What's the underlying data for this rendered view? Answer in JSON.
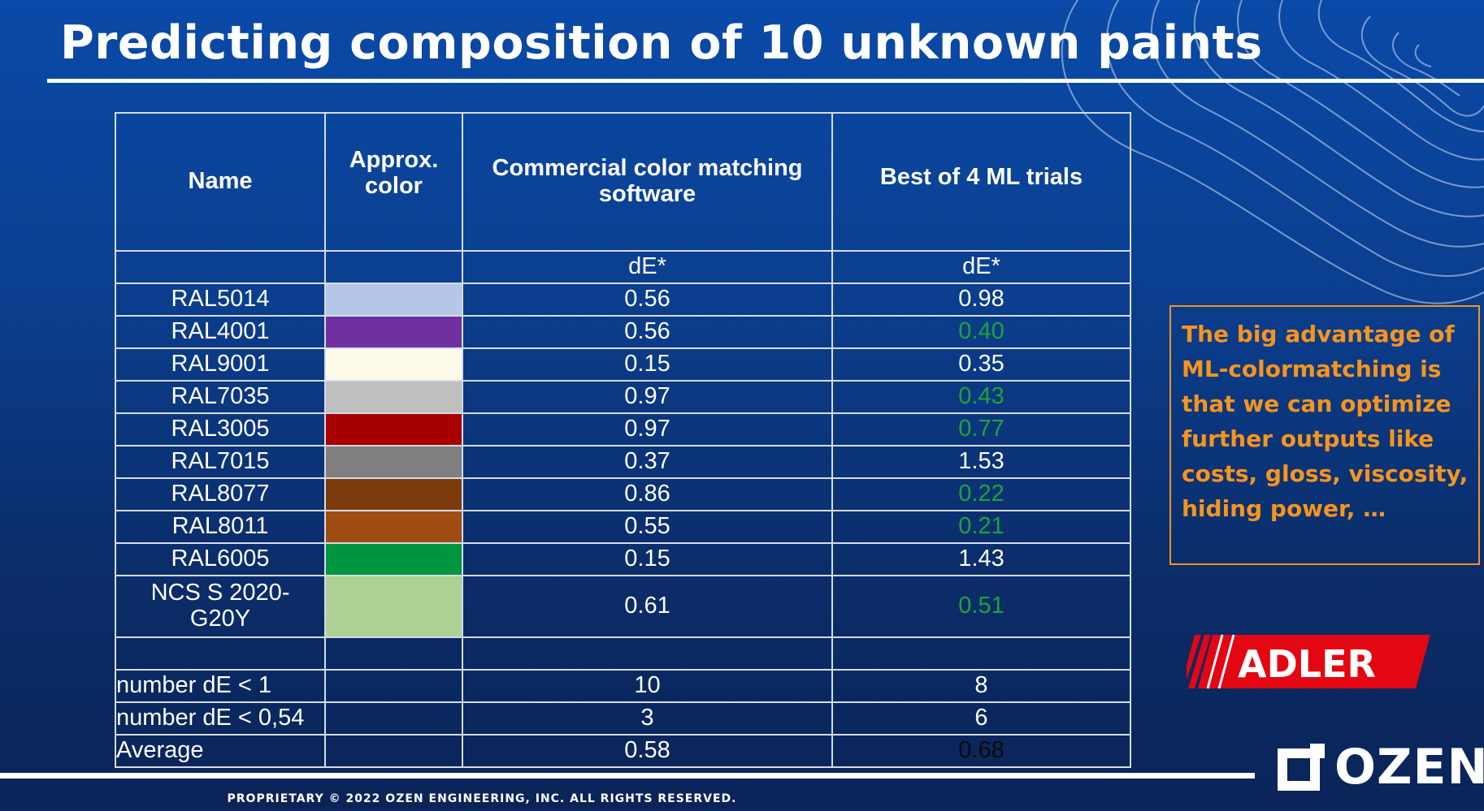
{
  "title": "Predicting composition of 10 unknown paints",
  "table": {
    "headers": {
      "name": "Name",
      "color": "Approx. color",
      "commercial": "Commercial color matching software",
      "ml": "Best of 4 ML trials"
    },
    "units": {
      "commercial": "dE*",
      "ml": "dE*"
    },
    "rows": [
      {
        "name": "RAL5014",
        "swatch": "#b4c7e8",
        "commercial": "0.56",
        "ml": "0.98",
        "ml_color": "#ffffff"
      },
      {
        "name": "RAL4001",
        "swatch": "#7030a0",
        "commercial": "0.56",
        "ml": "0.40",
        "ml_color": "#1fa33a"
      },
      {
        "name": "RAL9001",
        "swatch": "#fefce8",
        "commercial": "0.15",
        "ml": "0.35",
        "ml_color": "#ffffff"
      },
      {
        "name": "RAL7035",
        "swatch": "#bfbfbf",
        "commercial": "0.97",
        "ml": "0.43",
        "ml_color": "#1fa33a"
      },
      {
        "name": "RAL3005",
        "swatch": "#a80000",
        "commercial": "0.97",
        "ml": "0.77",
        "ml_color": "#1fa33a"
      },
      {
        "name": "RAL7015",
        "swatch": "#7f7f7f",
        "commercial": "0.37",
        "ml": "1.53",
        "ml_color": "#ffffff"
      },
      {
        "name": "RAL8077",
        "swatch": "#7b3a0c",
        "commercial": "0.86",
        "ml": "0.22",
        "ml_color": "#1fa33a"
      },
      {
        "name": "RAL8011",
        "swatch": "#a04c12",
        "commercial": "0.55",
        "ml": "0.21",
        "ml_color": "#1fa33a"
      },
      {
        "name": "RAL6005",
        "swatch": "#00963f",
        "commercial": "0.15",
        "ml": "1.43",
        "ml_color": "#ffffff"
      },
      {
        "name": "NCS S 2020-G20Y",
        "swatch": "#acd192",
        "commercial": "0.61",
        "ml": "0.51",
        "ml_color": "#1fa33a"
      }
    ],
    "summary": [
      {
        "label": "number dE < 1",
        "commercial": "10",
        "ml": "8",
        "ml_color": "#ffffff"
      },
      {
        "label": "number dE < 0,54",
        "commercial": "3",
        "ml": "6",
        "ml_color": "#ffffff"
      },
      {
        "label": "Average",
        "commercial": "0.58",
        "ml": "0.68",
        "ml_color": "#0a0a0a"
      }
    ]
  },
  "callout": {
    "lines": [
      "The big advantage of",
      "ML-colormatching is",
      "that we can optimize",
      "further outputs like",
      "costs, gloss, viscosity,",
      "hiding power, …"
    ],
    "color": "#f7941d"
  },
  "adler_logo": "ADLER",
  "ozen_logo": "OZEN",
  "footer": "PROPRIETARY © 2022 OZEN ENGINEERING, INC. ALL RIGHTS RESERVED."
}
